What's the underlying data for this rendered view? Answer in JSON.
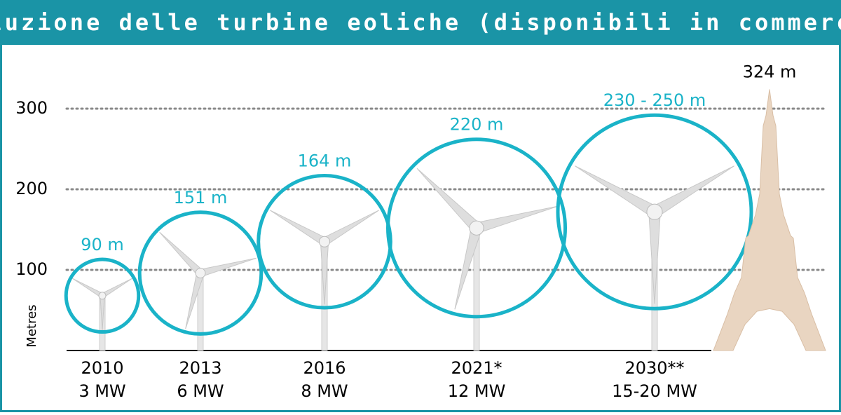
{
  "chart_data": {
    "type": "turbine",
    "title": "Evoluzione delle turbine eoliche (disponibili in commercio)",
    "y_label": "Metres",
    "categories": [
      "2010",
      "2013",
      "2016",
      "2021*",
      "2030**"
    ],
    "power": [
      "3 MW",
      "6 MW",
      "8 MW",
      "12 MW",
      "15-20 MW"
    ],
    "values": [
      90,
      151,
      164,
      220,
      240
    ],
    "value_labels": [
      "90 m",
      "151 m",
      "164 m",
      "220 m",
      "230 - 250 m"
    ],
    "hub_heights": [
      68,
      96,
      135,
      152,
      172
    ],
    "color": "#1ab3c8",
    "ylim": [
      0,
      370
    ],
    "yticks": [
      100,
      200,
      300
    ],
    "grid": true,
    "reference": {
      "value": 324,
      "label": "324 m",
      "color": "#e9d5c1"
    }
  }
}
